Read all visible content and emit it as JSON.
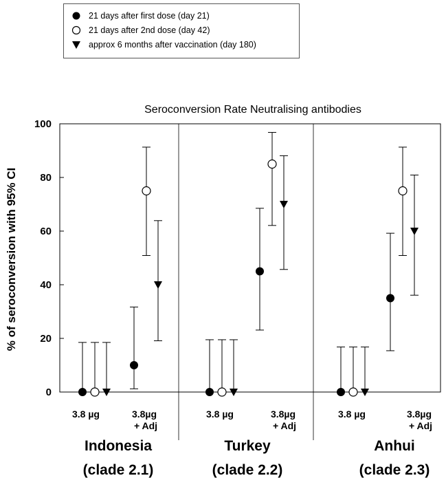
{
  "chart_data": {
    "type": "scatter",
    "title": "Seroconversion Rate  Neutralising antibodies",
    "ylabel": "% of seroconversion with 95% CI",
    "ylim": [
      0,
      100
    ],
    "yticks": [
      0,
      20,
      40,
      60,
      80,
      100
    ],
    "grid": false,
    "legend_position": "top-left (outside plot)",
    "legend": [
      {
        "name": "21 days after first dose (day 21)",
        "marker": "filled-circle"
      },
      {
        "name": "21 days after 2nd dose (day 42)",
        "marker": "open-circle"
      },
      {
        "name": "approx 6 months after vaccination (day 180)",
        "marker": "filled-triangle-down"
      }
    ],
    "panels": [
      {
        "region": "Indonesia",
        "clade": "(clade 2.1)"
      },
      {
        "region": "Turkey",
        "clade": "(clade 2.2)"
      },
      {
        "region": "Anhui",
        "clade": "(clade 2.3)"
      }
    ],
    "groups": [
      "3.8 µg",
      "3.8µg\n+ Adj"
    ],
    "group_line1": [
      "3.8 µg",
      "3.8µg"
    ],
    "group_line2": [
      "",
      "+ Adj"
    ],
    "points": [
      {
        "panel": 0,
        "group": 0,
        "series": 0,
        "value": 0,
        "ci": [
          0,
          18.5
        ]
      },
      {
        "panel": 0,
        "group": 0,
        "series": 1,
        "value": 0,
        "ci": [
          0,
          18.5
        ]
      },
      {
        "panel": 0,
        "group": 0,
        "series": 2,
        "value": 0,
        "ci": [
          0,
          18.5
        ]
      },
      {
        "panel": 0,
        "group": 1,
        "series": 0,
        "value": 10,
        "ci": [
          1.2,
          31.7
        ]
      },
      {
        "panel": 0,
        "group": 1,
        "series": 1,
        "value": 75,
        "ci": [
          50.9,
          91.3
        ]
      },
      {
        "panel": 0,
        "group": 1,
        "series": 2,
        "value": 40,
        "ci": [
          19.1,
          63.9
        ]
      },
      {
        "panel": 1,
        "group": 0,
        "series": 0,
        "value": 0,
        "ci": [
          0,
          19.5
        ]
      },
      {
        "panel": 1,
        "group": 0,
        "series": 1,
        "value": 0,
        "ci": [
          0,
          19.5
        ]
      },
      {
        "panel": 1,
        "group": 0,
        "series": 2,
        "value": 0,
        "ci": [
          0,
          19.5
        ]
      },
      {
        "panel": 1,
        "group": 1,
        "series": 0,
        "value": 45,
        "ci": [
          23.1,
          68.5
        ]
      },
      {
        "panel": 1,
        "group": 1,
        "series": 1,
        "value": 85,
        "ci": [
          62.1,
          96.8
        ]
      },
      {
        "panel": 1,
        "group": 1,
        "series": 2,
        "value": 70,
        "ci": [
          45.7,
          88.1
        ]
      },
      {
        "panel": 2,
        "group": 0,
        "series": 0,
        "value": 0,
        "ci": [
          0,
          16.8
        ]
      },
      {
        "panel": 2,
        "group": 0,
        "series": 1,
        "value": 0,
        "ci": [
          0,
          16.8
        ]
      },
      {
        "panel": 2,
        "group": 0,
        "series": 2,
        "value": 0,
        "ci": [
          0,
          16.8
        ]
      },
      {
        "panel": 2,
        "group": 1,
        "series": 0,
        "value": 35,
        "ci": [
          15.4,
          59.2
        ]
      },
      {
        "panel": 2,
        "group": 1,
        "series": 1,
        "value": 75,
        "ci": [
          50.9,
          91.3
        ]
      },
      {
        "panel": 2,
        "group": 1,
        "series": 2,
        "value": 60,
        "ci": [
          36.1,
          80.9
        ]
      }
    ]
  }
}
